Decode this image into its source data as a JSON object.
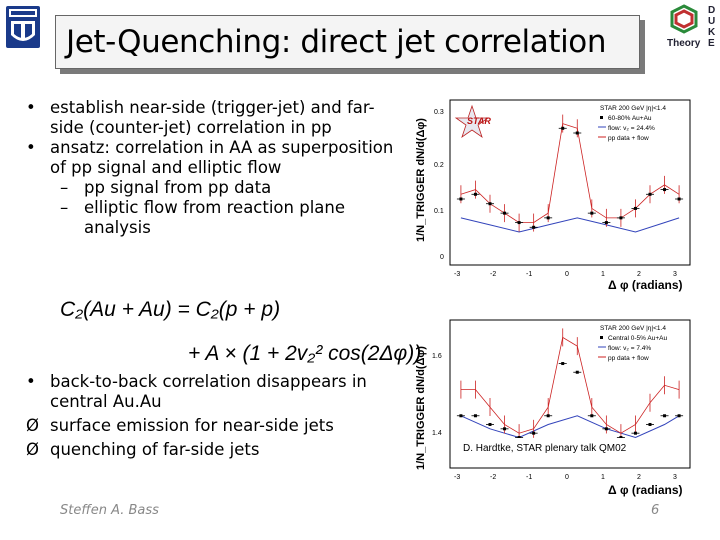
{
  "title": "Jet-Quenching: direct jet correlation",
  "logo_right": {
    "letters": [
      "D",
      "U",
      "K",
      "E"
    ],
    "label": "Theory"
  },
  "bullets_top": [
    {
      "marker": "•",
      "text": "establish near-side (trigger-jet) and far-side (counter-jet) correlation in pp"
    },
    {
      "marker": "•",
      "text": "ansatz: correlation in AA as superposition of pp signal and elliptic flow"
    }
  ],
  "sub_bullets": [
    {
      "marker": "–",
      "text": "pp signal from pp data"
    },
    {
      "marker": "–",
      "text": "elliptic flow from reaction plane analysis"
    }
  ],
  "bullets_bottom": [
    {
      "marker": "•",
      "text": "back-to-back correlation disappears in central Au.Au"
    },
    {
      "marker": "Ø",
      "text": "surface emission for near-side jets"
    },
    {
      "marker": "Ø",
      "text": "quenching of far-side jets"
    }
  ],
  "equation": {
    "line1": "C₂(Au + Au) = C₂(p + p)",
    "line2": "+ A × (1 + 2v₂² cos(2Δφ))"
  },
  "footer": {
    "author": "Steffen A. Bass",
    "page": "6"
  },
  "plot_top": {
    "star_label": "STAR",
    "ylabel": "1/N_TRIGGER dN/d(Δφ)",
    "xlabel": "Δ φ (radians)",
    "legend": [
      "STAR 200 GeV |η|<1.4",
      "60-80% Au+Au",
      "flow: v₂ = 24.4%",
      "pp data + flow"
    ],
    "yticks": [
      "0",
      "0.1",
      "0.2",
      "0.3"
    ],
    "xticks": [
      "-3",
      "-2",
      "-1",
      "0",
      "1",
      "2",
      "3"
    ]
  },
  "plot_bottom": {
    "ylabel": "1/N_TRIGGER dN/d(Δφ)",
    "xlabel": "Δ φ (radians)",
    "legend": [
      "STAR 200 GeV |η|<1.4",
      "Central 0-5% Au+Au",
      "flow: v₂ = 7.4%",
      "pp data + flow"
    ],
    "yticks": [
      "1.4",
      "1.6"
    ],
    "xticks": [
      "-3",
      "-2",
      "-1",
      "0",
      "1",
      "2",
      "3"
    ],
    "caption": "D. Hardtke, STAR plenary talk QM02"
  },
  "chart_data": [
    {
      "type": "scatter",
      "title": "",
      "xlabel": "Δ φ (radians)",
      "ylabel": "1/N_TRIGGER dN/d(Δφ)",
      "xlim": [
        -3.3,
        3.3
      ],
      "ylim": [
        -0.02,
        0.33
      ],
      "series": [
        {
          "name": "60-80% Au+Au",
          "x": [
            -3.0,
            -2.6,
            -2.2,
            -1.8,
            -1.4,
            -1.0,
            -0.6,
            -0.2,
            0.2,
            0.6,
            1.0,
            1.4,
            1.8,
            2.2,
            2.6,
            3.0
          ],
          "y": [
            0.12,
            0.13,
            0.11,
            0.09,
            0.07,
            0.06,
            0.08,
            0.27,
            0.26,
            0.09,
            0.07,
            0.08,
            0.1,
            0.13,
            0.14,
            0.12
          ]
        },
        {
          "name": "flow: v₂ = 24.4%",
          "x": [
            -3.0,
            -2.2,
            -1.4,
            -0.6,
            0.2,
            1.0,
            1.8,
            2.6,
            3.0
          ],
          "y": [
            0.08,
            0.065,
            0.05,
            0.065,
            0.08,
            0.065,
            0.05,
            0.07,
            0.08
          ]
        },
        {
          "name": "pp data + flow",
          "x": [
            -3.0,
            -2.6,
            -2.2,
            -1.8,
            -1.4,
            -1.0,
            -0.6,
            -0.2,
            0.2,
            0.6,
            1.0,
            1.4,
            1.8,
            2.2,
            2.6,
            3.0
          ],
          "y": [
            0.13,
            0.14,
            0.11,
            0.09,
            0.07,
            0.07,
            0.09,
            0.28,
            0.27,
            0.1,
            0.08,
            0.08,
            0.1,
            0.13,
            0.15,
            0.13
          ]
        }
      ]
    },
    {
      "type": "scatter",
      "title": "",
      "xlabel": "Δ φ (radians)",
      "ylabel": "1/N_TRIGGER dN/d(Δφ)",
      "xlim": [
        -3.3,
        3.3
      ],
      "ylim": [
        1.38,
        1.72
      ],
      "series": [
        {
          "name": "Central 0-5% Au+Au",
          "x": [
            -3.0,
            -2.6,
            -2.2,
            -1.8,
            -1.4,
            -1.0,
            -0.6,
            -0.2,
            0.2,
            0.6,
            1.0,
            1.4,
            1.8,
            2.2,
            2.6,
            3.0
          ],
          "y": [
            1.5,
            1.5,
            1.48,
            1.47,
            1.45,
            1.46,
            1.5,
            1.62,
            1.6,
            1.5,
            1.47,
            1.45,
            1.46,
            1.48,
            1.5,
            1.5
          ]
        },
        {
          "name": "flow: v₂ = 7.4%",
          "x": [
            -3.0,
            -2.2,
            -1.4,
            -0.6,
            0.2,
            1.0,
            1.8,
            2.6,
            3.0
          ],
          "y": [
            1.5,
            1.47,
            1.45,
            1.48,
            1.5,
            1.47,
            1.45,
            1.48,
            1.5
          ]
        },
        {
          "name": "pp data + flow",
          "x": [
            -3.0,
            -2.6,
            -2.2,
            -1.8,
            -1.4,
            -1.0,
            -0.6,
            -0.2,
            0.2,
            0.6,
            1.0,
            1.4,
            1.8,
            2.2,
            2.6,
            3.0
          ],
          "y": [
            1.56,
            1.56,
            1.52,
            1.48,
            1.46,
            1.47,
            1.52,
            1.68,
            1.66,
            1.52,
            1.48,
            1.46,
            1.48,
            1.53,
            1.57,
            1.56
          ]
        }
      ]
    }
  ]
}
